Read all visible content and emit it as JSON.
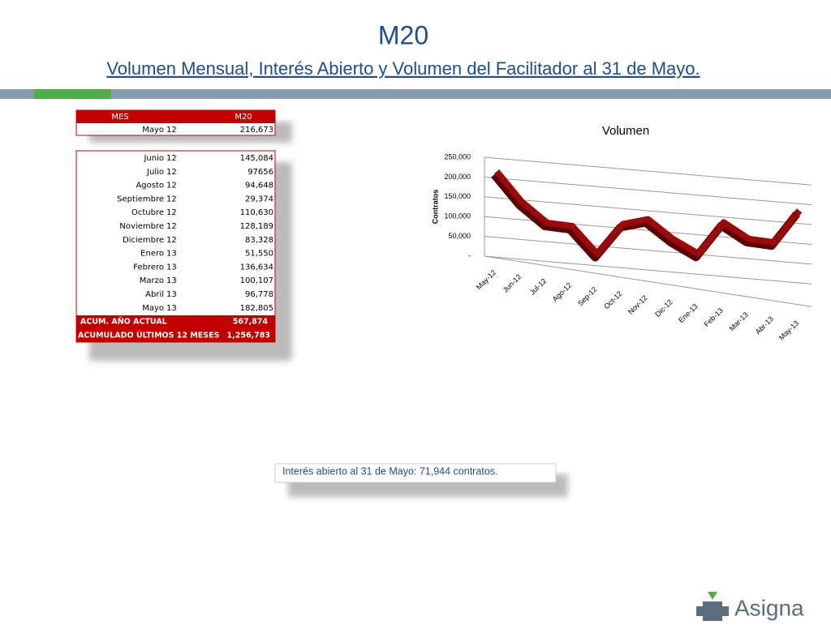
{
  "header": {
    "title": "M20",
    "subtitle": "Volumen Mensual, Interés Abierto y Volumen del Facilitador al 31 de Mayo."
  },
  "table_top": {
    "columns": [
      "MES",
      "M20"
    ],
    "rows": [
      [
        "Mayo",
        "12",
        "216,673"
      ]
    ]
  },
  "table_months": {
    "rows": [
      [
        "Junio",
        "12",
        "145,084"
      ],
      [
        "Julio",
        "12",
        "97656"
      ],
      [
        "Agosto",
        "12",
        "94,648"
      ],
      [
        "Septiembre",
        "12",
        "29,374"
      ],
      [
        "Octubre",
        "12",
        "110,630"
      ],
      [
        "Noviembre",
        "12",
        "128,189"
      ],
      [
        "Diciembre",
        "12",
        "83,328"
      ],
      [
        "Enero",
        "13",
        "51,550"
      ],
      [
        "Febrero",
        "13",
        "136,634"
      ],
      [
        "Marzo",
        "13",
        "100,107"
      ],
      [
        "Abril",
        "13",
        "96,778"
      ],
      [
        "Mayo",
        "13",
        "182,805"
      ]
    ],
    "totals": [
      [
        "ACUM. AÑO ACTUAL",
        "567,874"
      ],
      [
        "ACUMULADO ÚLTIMOS 12 MESES",
        "1,256,783"
      ]
    ]
  },
  "chart_data": {
    "type": "line",
    "title": "Volumen",
    "y_label": "Contratos",
    "categories": [
      "May-12",
      "Jun-12",
      "Jul-12",
      "Ago-12",
      "Sep-12",
      "Oct-12",
      "Nov-12",
      "Dic-12",
      "Ene-13",
      "Feb-13",
      "Mar-13",
      "Abr-13",
      "May-13"
    ],
    "values": [
      216673,
      145084,
      97656,
      94648,
      29374,
      110630,
      128189,
      83328,
      51550,
      136634,
      100107,
      96778,
      182805
    ],
    "color": "#9b0a0a",
    "ylim": [
      0,
      250000
    ],
    "yticks": [
      {
        "value": 0,
        "label": "-"
      },
      {
        "value": 50000,
        "label": "50,000"
      },
      {
        "value": 100000,
        "label": "100,000"
      },
      {
        "value": 150000,
        "label": "150,000"
      },
      {
        "value": 200000,
        "label": "200,000"
      },
      {
        "value": 250000,
        "label": "250,000"
      }
    ],
    "grid": true
  },
  "note": "Interés abierto al 31 de Mayo: 71,944 contratos.",
  "logo": "Asigna"
}
